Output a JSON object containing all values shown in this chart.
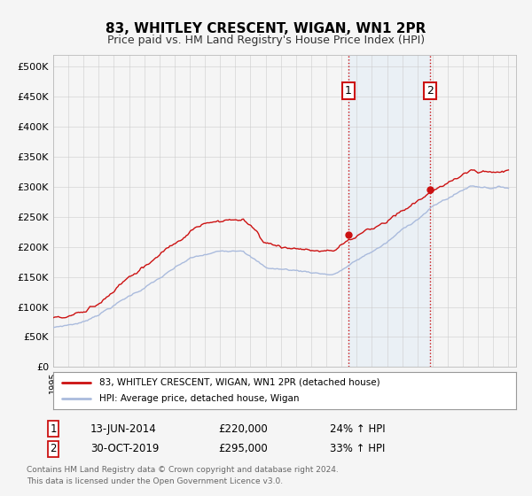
{
  "title": "83, WHITLEY CRESCENT, WIGAN, WN1 2PR",
  "subtitle": "Price paid vs. HM Land Registry's House Price Index (HPI)",
  "hpi_color": "#aabbdd",
  "price_color": "#cc1111",
  "sale_marker_color": "#cc1111",
  "annotation_box_color": "#cc1111",
  "vline_color": "#cc1111",
  "shading_color": "#d8e8f5",
  "background_color": "#f5f5f5",
  "ylim": [
    0,
    520000
  ],
  "yticks": [
    0,
    50000,
    100000,
    150000,
    200000,
    250000,
    300000,
    350000,
    400000,
    450000,
    500000
  ],
  "sale1_date_num": 2014.44,
  "sale1_price": 220000,
  "sale2_date_num": 2019.83,
  "sale2_price": 295000,
  "legend_entries": [
    "83, WHITLEY CRESCENT, WIGAN, WN1 2PR (detached house)",
    "HPI: Average price, detached house, Wigan"
  ],
  "annotation1_label": "1",
  "annotation1_date": "13-JUN-2014",
  "annotation1_price": "£220,000",
  "annotation1_hpi": "24% ↑ HPI",
  "annotation2_label": "2",
  "annotation2_date": "30-OCT-2019",
  "annotation2_price": "£295,000",
  "annotation2_hpi": "33% ↑ HPI",
  "footer1": "Contains HM Land Registry data © Crown copyright and database right 2024.",
  "footer2": "This data is licensed under the Open Government Licence v3.0."
}
